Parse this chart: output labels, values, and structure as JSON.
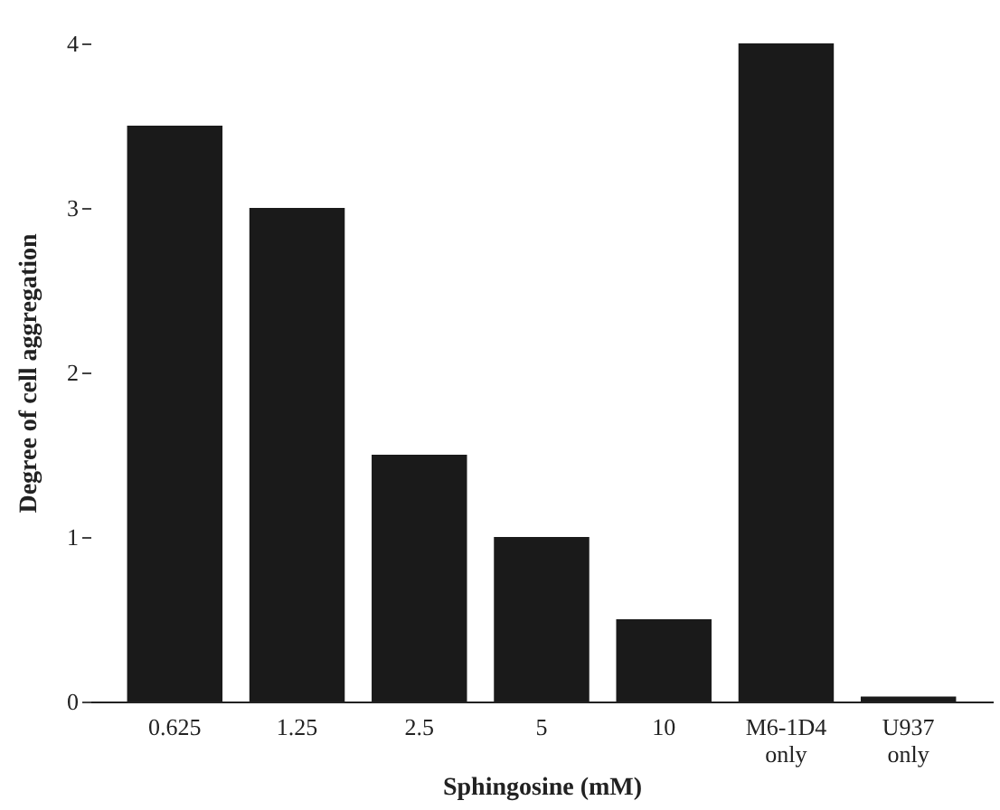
{
  "chart_data": {
    "type": "bar",
    "xlabel": "Sphingosine (mM)",
    "ylabel": "Degree of cell aggregation",
    "categories": [
      "0.625",
      "1.25",
      "2.5",
      "5",
      "10",
      "M6-1D4 only",
      "U937 only"
    ],
    "values": [
      3.5,
      3,
      1.5,
      1,
      0.5,
      4,
      0.03
    ],
    "color": "#1a1a1a",
    "ylim": [
      0,
      4
    ],
    "yticks": [
      0,
      1,
      2,
      3,
      4
    ],
    "grid": false
  }
}
